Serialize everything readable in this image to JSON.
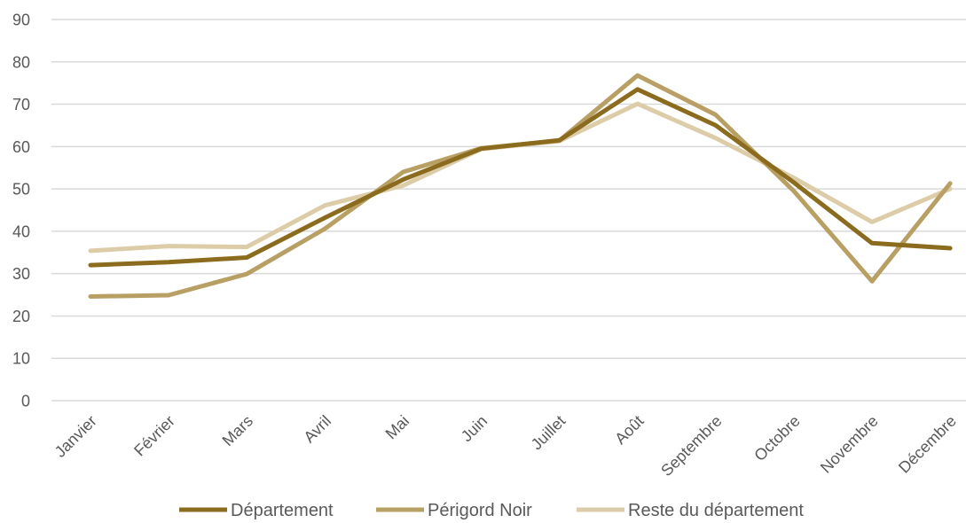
{
  "chart_data": {
    "type": "line",
    "title": "",
    "xlabel": "",
    "ylabel": "",
    "ylim": [
      0,
      90
    ],
    "yticks": [
      0,
      10,
      20,
      30,
      40,
      50,
      60,
      70,
      80,
      90
    ],
    "ytick_labels": [
      "0",
      "10",
      "20",
      "30",
      "40",
      "50",
      "60",
      "70",
      "80",
      "90"
    ],
    "grid": true,
    "legend_position": "bottom",
    "categories": [
      "Janvier",
      "Février",
      "Mars",
      "Avril",
      "Mai",
      "Juin",
      "Juillet",
      "Août",
      "Septembre",
      "Octobre",
      "Novembre",
      "Décembre"
    ],
    "series": [
      {
        "name": "Département",
        "color": "#8B6B1E",
        "values": [
          32,
          32.7,
          33.8,
          43.2,
          52.2,
          59.5,
          61.5,
          73.5,
          65,
          51.5,
          37.2,
          36
        ]
      },
      {
        "name": "Périgord Noir",
        "color": "#B8A065",
        "values": [
          24.6,
          24.9,
          29.9,
          40.6,
          54,
          59.6,
          61.4,
          76.8,
          67.5,
          49.5,
          28.2,
          51.3
        ]
      },
      {
        "name": "Reste du département",
        "color": "#DCCDA8",
        "values": [
          35.4,
          36.5,
          36.3,
          46.1,
          50.8,
          59.4,
          61.3,
          70.1,
          62,
          52.6,
          42.2,
          50
        ]
      }
    ]
  }
}
